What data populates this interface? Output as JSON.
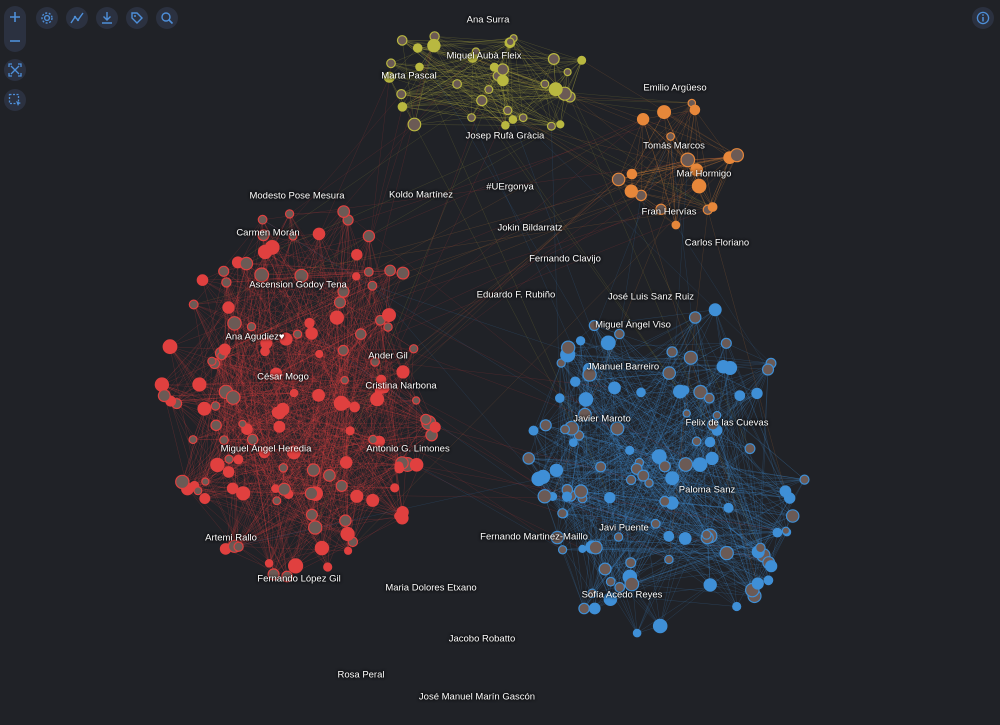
{
  "toolbar": {
    "buttons": [
      {
        "icon": "settings-gear-icon"
      },
      {
        "icon": "layout-chart-icon"
      },
      {
        "icon": "download-icon"
      },
      {
        "icon": "tag-icon"
      },
      {
        "icon": "search-icon"
      }
    ],
    "info_icon": "info-icon",
    "zoom": {
      "in_icon": "zoom-in-icon",
      "out_icon": "zoom-out-icon"
    },
    "fit_icon": "fit-screen-icon",
    "select_icon": "box-select-icon"
  },
  "colors": {
    "background": "#202227",
    "community_red": "#e0403f",
    "community_blue": "#3f8fd6",
    "community_yellow": "#b9b840",
    "community_orange": "#e7873a",
    "toolbar_icon": "#4e8fd9"
  },
  "labels": [
    {
      "text": "Ana Surra"
    },
    {
      "text": "Miquel Aubà Fleix"
    },
    {
      "text": "Marta Pascal"
    },
    {
      "text": "Josep Rufà Gràcia"
    },
    {
      "text": "Emilio Argüeso"
    },
    {
      "text": "Tomás Marcos"
    },
    {
      "text": "Mar Hormigo"
    },
    {
      "text": "Fran Hervías"
    },
    {
      "text": "Carlos Floriano"
    },
    {
      "text": "Modesto Pose Mesura"
    },
    {
      "text": "Koldo Martínez"
    },
    {
      "text": "#UErgonya"
    },
    {
      "text": "Carmen Morán"
    },
    {
      "text": "Jokin Bildarratz"
    },
    {
      "text": "Fernando Clavijo"
    },
    {
      "text": "Ascension Godoy Tena"
    },
    {
      "text": "Eduardo F. Rubiño"
    },
    {
      "text": "José Luis Sanz Ruiz"
    },
    {
      "text": "Miguel Ángel Viso"
    },
    {
      "text": "Ana Agudiez♥"
    },
    {
      "text": "Ander Gil"
    },
    {
      "text": "César Mogo"
    },
    {
      "text": "Cristina Narbona"
    },
    {
      "text": "JManuel Barreiro"
    },
    {
      "text": "Javier Maroto"
    },
    {
      "text": "Felix de las Cuevas"
    },
    {
      "text": "Miguel Ángel Heredia"
    },
    {
      "text": "Antonio G. Limones"
    },
    {
      "text": "Paloma Sanz"
    },
    {
      "text": "Javi Puente"
    },
    {
      "text": "Artemi Rallo"
    },
    {
      "text": "Fernando Martinez-Maillo"
    },
    {
      "text": "Fernando López Gil"
    },
    {
      "text": "Maria Dolores Etxano"
    },
    {
      "text": "Sofía Acedo Reyes"
    },
    {
      "text": "Jacobo Robatto"
    },
    {
      "text": "Rosa Peral"
    },
    {
      "text": "José Manuel Marín Gascón"
    }
  ]
}
